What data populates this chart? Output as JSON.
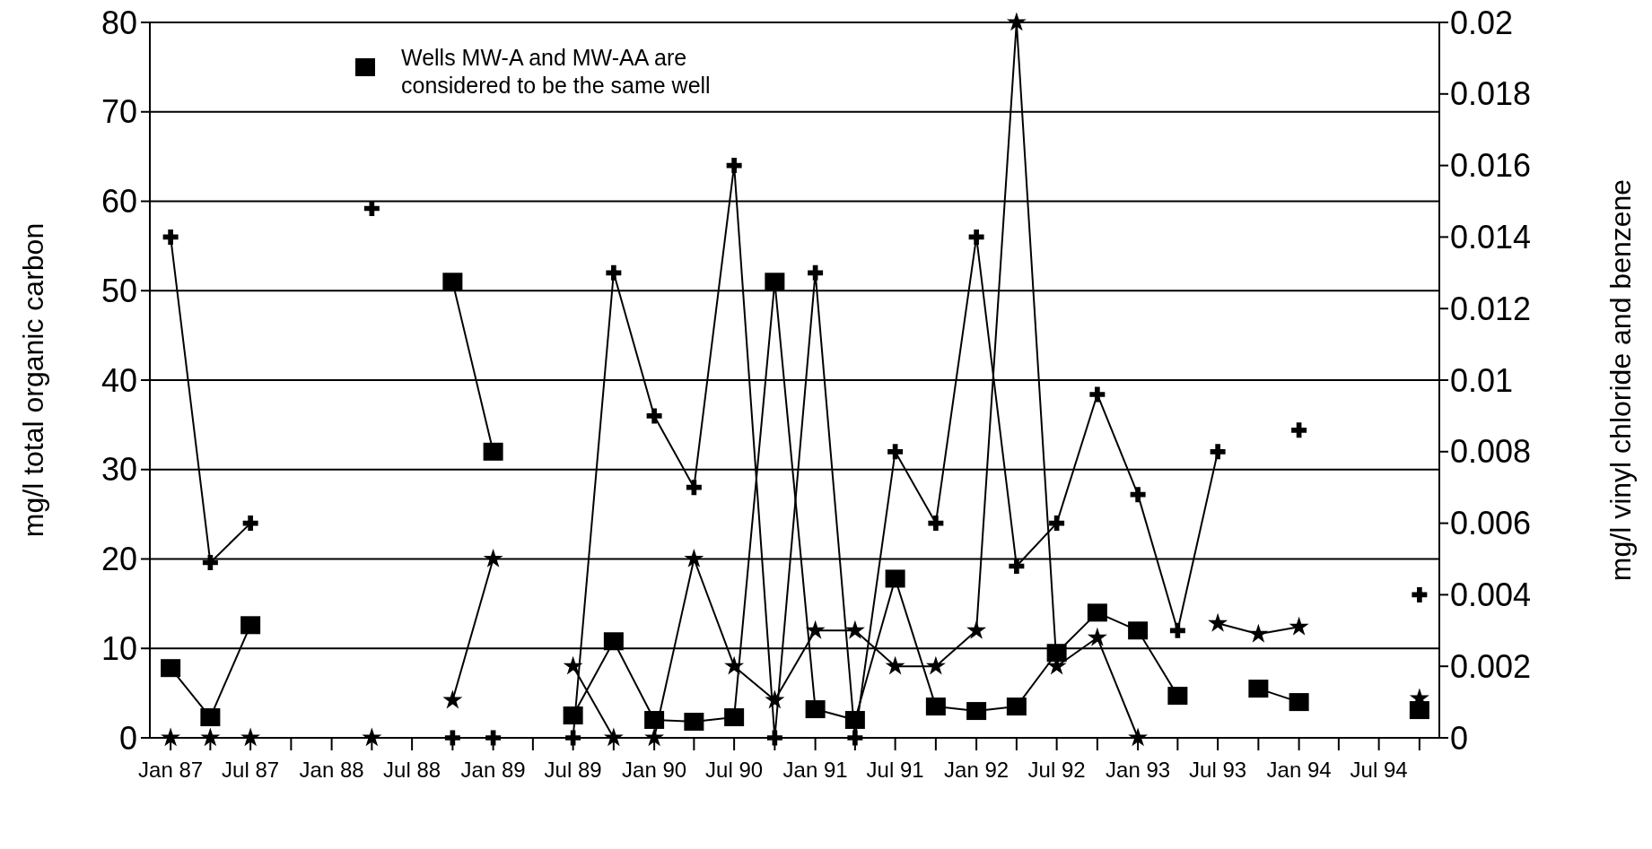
{
  "chart_data": {
    "type": "line",
    "ylabel": "mg/l total organic carbon",
    "y2label": "mg/l vinyl chloride and benzene",
    "x": [
      "1987-01",
      "1987-04",
      "1987-07",
      "1987-10",
      "1988-01",
      "1988-04",
      "1988-07",
      "1988-10",
      "1989-01",
      "1989-04",
      "1989-07",
      "1989-10",
      "1990-01",
      "1990-04",
      "1990-07",
      "1990-10",
      "1991-01",
      "1991-04",
      "1991-07",
      "1991-10",
      "1992-01",
      "1992-04",
      "1992-07",
      "1992-10",
      "1993-01",
      "1993-04",
      "1993-07",
      "1993-10",
      "1994-01",
      "1994-04",
      "1994-07",
      "1994-10"
    ],
    "xlim": [
      "1986-11-15",
      "1994-11-15"
    ],
    "xticks": [
      {
        "value": "1987-01",
        "label": "Jan 87"
      },
      {
        "value": "1987-04",
        "label": null
      },
      {
        "value": "1987-07",
        "label": "Jul 87"
      },
      {
        "value": "1987-10",
        "label": null
      },
      {
        "value": "1988-01",
        "label": "Jan 88"
      },
      {
        "value": "1988-04",
        "label": null
      },
      {
        "value": "1988-07",
        "label": "Jul 88"
      },
      {
        "value": "1988-10",
        "label": null
      },
      {
        "value": "1989-01",
        "label": "Jan 89"
      },
      {
        "value": "1989-04",
        "label": null
      },
      {
        "value": "1989-07",
        "label": "Jul 89"
      },
      {
        "value": "1989-10",
        "label": null
      },
      {
        "value": "1990-01",
        "label": "Jan 90"
      },
      {
        "value": "1990-04",
        "label": null
      },
      {
        "value": "1990-07",
        "label": "Jul 90"
      },
      {
        "value": "1990-10",
        "label": null
      },
      {
        "value": "1991-01",
        "label": "Jan 91"
      },
      {
        "value": "1991-04",
        "label": null
      },
      {
        "value": "1991-07",
        "label": "Jul 91"
      },
      {
        "value": "1991-10",
        "label": null
      },
      {
        "value": "1992-01",
        "label": "Jan 92"
      },
      {
        "value": "1992-04",
        "label": null
      },
      {
        "value": "1992-07",
        "label": "Jul 92"
      },
      {
        "value": "1992-10",
        "label": null
      },
      {
        "value": "1993-01",
        "label": "Jan 93"
      },
      {
        "value": "1993-04",
        "label": null
      },
      {
        "value": "1993-07",
        "label": "Jul 93"
      },
      {
        "value": "1993-10",
        "label": null
      },
      {
        "value": "1994-01",
        "label": "Jan 94"
      },
      {
        "value": "1994-04",
        "label": null
      },
      {
        "value": "1994-07",
        "label": "Jul 94"
      },
      {
        "value": "1994-10",
        "label": null
      }
    ],
    "ylim": [
      0,
      80
    ],
    "yticks": [
      0,
      10,
      20,
      30,
      40,
      50,
      60,
      70,
      80
    ],
    "y2lim": [
      0,
      0.02
    ],
    "y2ticks": [
      0,
      0.002,
      0.004,
      0.006,
      0.008,
      0.01,
      0.012,
      0.014,
      0.016,
      0.018,
      0.02
    ],
    "grid": "y",
    "legend": "top",
    "series": [
      {
        "name": "Wells MW-A and MW-AA are considered to be the same well",
        "color": "#000000",
        "marker": "square",
        "values": [
          7.8,
          2.3,
          12.6,
          null,
          null,
          null,
          null,
          51,
          32,
          null,
          2.5,
          10.8,
          2,
          1.8,
          2.3,
          51,
          3.2,
          2,
          17.8,
          3.5,
          3,
          3.5,
          9.5,
          14,
          12,
          4.7,
          null,
          5.5,
          4,
          null,
          null,
          3.1
        ]
      },
      {
        "color": "#000000",
        "marker": "cross",
        "axis": "y2",
        "values": [
          0.014,
          0.0049,
          0.006,
          null,
          null,
          0.0148,
          null,
          0,
          0,
          null,
          0,
          0.013,
          0.009,
          0.007,
          0.016,
          0,
          0.013,
          0,
          0.008,
          0.006,
          0.014,
          0.0048,
          0.006,
          0.0096,
          0.0068,
          0.003,
          0.008,
          null,
          0.0086,
          null,
          null,
          0.004
        ]
      },
      {
        "color": "#000000",
        "marker": "star",
        "axis": "y2",
        "values": [
          0,
          0,
          0,
          null,
          null,
          0,
          null,
          0.00105,
          0.005,
          null,
          0.002,
          0,
          0,
          0.005,
          0.002,
          0.00105,
          0.003,
          0.003,
          0.002,
          0.002,
          0.003,
          0.02,
          0.002,
          0.0028,
          0,
          null,
          0.0032,
          0.0029,
          0.0031,
          null,
          null,
          0.0011
        ]
      }
    ]
  }
}
